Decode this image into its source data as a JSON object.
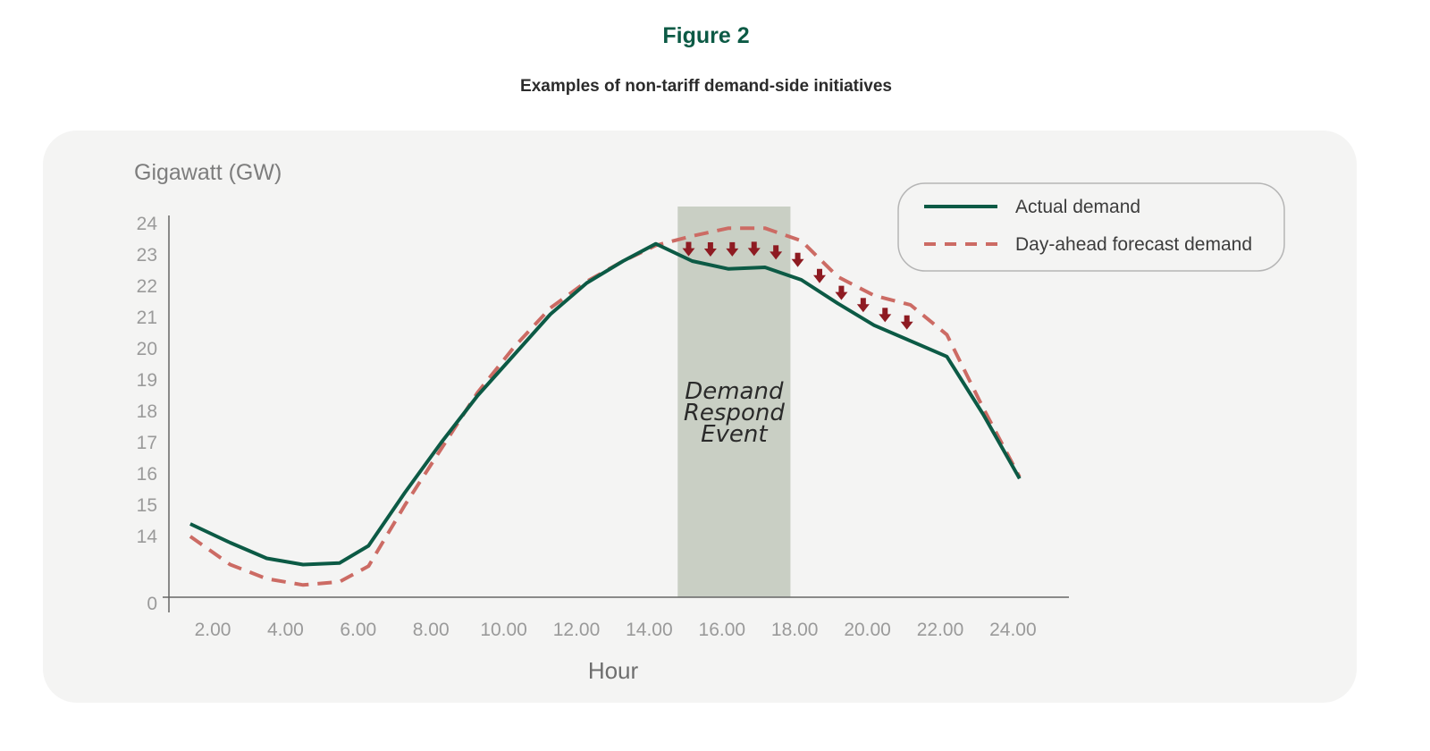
{
  "figure": {
    "label": "Figure 2",
    "caption": "Examples of non-tariff demand-side initiatives"
  },
  "colors": {
    "actual": "#0c5a45",
    "forecast": "#cc6b64",
    "arrow": "#8e1b22",
    "band": "#c9cfc4",
    "title": "#0c5a45",
    "panel": "#f4f4f3"
  },
  "chart_data": {
    "type": "line",
    "ylabel": "Gigawatt (GW)",
    "xlabel": "Hour",
    "y_ticks": [
      "0",
      "14",
      "15",
      "16",
      "17",
      "18",
      "19",
      "20",
      "21",
      "22",
      "23",
      "24"
    ],
    "x_ticks": [
      "2.00",
      "4.00",
      "6.00",
      "8.00",
      "10.00",
      "12.00",
      "14.00",
      "16.00",
      "18.00",
      "20.00",
      "22.00",
      "24.00"
    ],
    "x_tick_values": [
      2,
      4,
      6,
      8,
      10,
      12,
      14,
      16,
      18,
      20,
      22,
      24
    ],
    "y_axis_break": "between 0 and 14",
    "grid": false,
    "legend_position": "top-right",
    "highlight": {
      "label_lines": [
        "Demand",
        "Respond",
        "Event"
      ],
      "x_start": 13.8,
      "x_end": 16.9
    },
    "series": [
      {
        "name": "Actual demand",
        "style": "solid",
        "x": [
          0.4,
          1.5,
          2.5,
          3.5,
          4.5,
          5.3,
          6.3,
          7.3,
          8.3,
          9.3,
          10.3,
          11.3,
          12.3,
          13.2,
          14.2,
          15.2,
          16.2,
          17.2,
          18.2,
          19.2,
          20.2,
          21.2,
          22.2,
          23.2
        ],
        "values": [
          14.4,
          13.8,
          13.3,
          13.1,
          13.15,
          13.7,
          15.4,
          17.0,
          18.5,
          19.8,
          21.1,
          22.1,
          22.8,
          23.35,
          22.8,
          22.55,
          22.6,
          22.2,
          21.45,
          20.75,
          20.25,
          19.75,
          17.9,
          15.85
        ],
        "values_note": "break section between 0 and 14 GW"
      },
      {
        "name": "Day-ahead forecast demand",
        "style": "dashed",
        "x": [
          0.4,
          1.5,
          2.5,
          3.5,
          4.5,
          5.3,
          6.3,
          7.3,
          8.3,
          9.3,
          10.3,
          11.3,
          12.3,
          13.2,
          14.2,
          15.2,
          16.2,
          17.2,
          18.2,
          19.2,
          20.2,
          21.2,
          22.2,
          23.2
        ],
        "values": [
          14.0,
          13.1,
          12.65,
          12.45,
          12.55,
          13.05,
          15.0,
          16.8,
          18.6,
          20.05,
          21.3,
          22.15,
          22.8,
          23.3,
          23.6,
          23.85,
          23.85,
          23.45,
          22.3,
          21.7,
          21.4,
          20.45,
          18.1,
          15.9
        ]
      }
    ],
    "annotation_arrows_x": [
      14.1,
      14.7,
      15.3,
      15.9,
      16.5,
      17.1,
      17.7,
      18.3,
      18.9,
      19.5,
      20.1
    ]
  }
}
